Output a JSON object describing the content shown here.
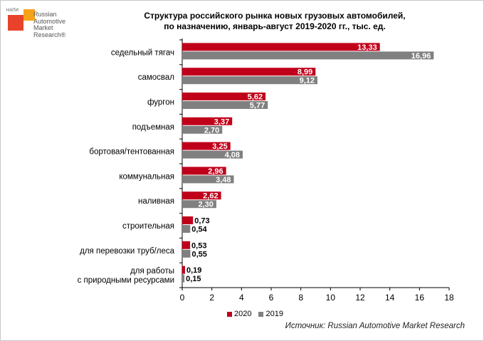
{
  "logo": {
    "tag": "НАПИ",
    "text": "Russian\nAutomotive\nMarket\nResearch®"
  },
  "chart_data": {
    "type": "bar",
    "orientation": "horizontal",
    "title": "Структура российского рынка новых грузовых автомобилей,\nпо назначению, январь-август 2019-2020 гг., тыс. ед.",
    "categories": [
      "седельный тягач",
      "самосвал",
      "фургон",
      "подъемная",
      "бортовая/тентованная",
      "коммунальная",
      "наливная",
      "строительная",
      "для перевозки труб/леса",
      "для работы\nс природными ресурсами"
    ],
    "series": [
      {
        "name": "2020",
        "color": "#c0001a",
        "values": [
          13.33,
          8.99,
          5.62,
          3.37,
          3.25,
          2.96,
          2.62,
          0.73,
          0.53,
          0.19
        ],
        "labels": [
          "13,33",
          "8,99",
          "5,62",
          "3,37",
          "3,25",
          "2,96",
          "2,62",
          "0,73",
          "0,53",
          "0,19"
        ]
      },
      {
        "name": "2019",
        "color": "#808080",
        "values": [
          16.96,
          9.12,
          5.77,
          2.7,
          4.08,
          3.48,
          2.3,
          0.54,
          0.55,
          0.15
        ],
        "labels": [
          "16,96",
          "9,12",
          "5,77",
          "2,70",
          "4,08",
          "3,48",
          "2,30",
          "0,54",
          "0,55",
          "0,15"
        ]
      }
    ],
    "xlim": [
      0,
      18
    ],
    "xticks": [
      "0",
      "2",
      "4",
      "6",
      "8",
      "10",
      "12",
      "14",
      "16",
      "18"
    ],
    "grid": false,
    "legend": "bottom"
  },
  "source": "Источник: Russian Automotive Market Research"
}
